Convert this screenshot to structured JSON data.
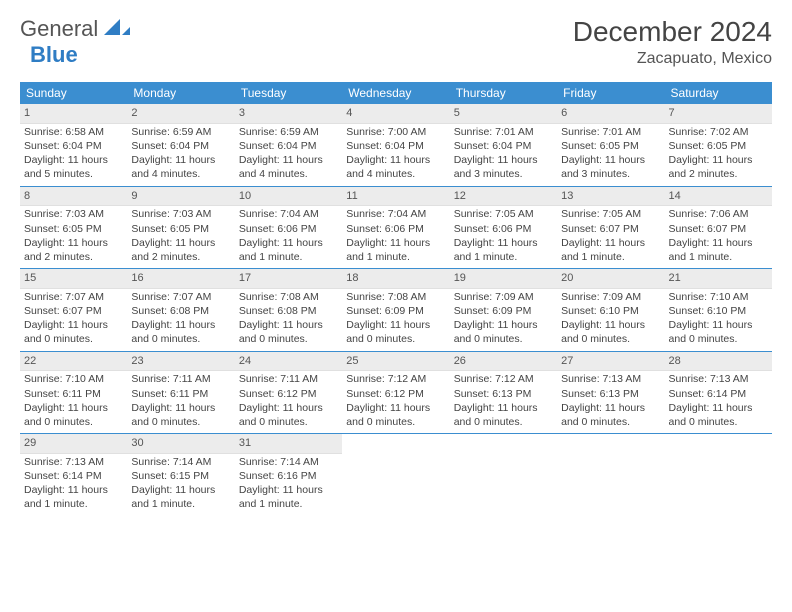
{
  "logo": {
    "word1": "General",
    "word2": "Blue"
  },
  "header": {
    "title": "December 2024",
    "location": "Zacapuato, Mexico"
  },
  "colors": {
    "header_bg": "#3b8ed0",
    "header_text": "#ffffff",
    "daynum_bg": "#ececec",
    "rule": "#3b8ed0",
    "text": "#444444"
  },
  "day_names": [
    "Sunday",
    "Monday",
    "Tuesday",
    "Wednesday",
    "Thursday",
    "Friday",
    "Saturday"
  ],
  "weeks": [
    [
      {
        "n": "1",
        "sr": "Sunrise: 6:58 AM",
        "ss": "Sunset: 6:04 PM",
        "d1": "Daylight: 11 hours",
        "d2": "and 5 minutes."
      },
      {
        "n": "2",
        "sr": "Sunrise: 6:59 AM",
        "ss": "Sunset: 6:04 PM",
        "d1": "Daylight: 11 hours",
        "d2": "and 4 minutes."
      },
      {
        "n": "3",
        "sr": "Sunrise: 6:59 AM",
        "ss": "Sunset: 6:04 PM",
        "d1": "Daylight: 11 hours",
        "d2": "and 4 minutes."
      },
      {
        "n": "4",
        "sr": "Sunrise: 7:00 AM",
        "ss": "Sunset: 6:04 PM",
        "d1": "Daylight: 11 hours",
        "d2": "and 4 minutes."
      },
      {
        "n": "5",
        "sr": "Sunrise: 7:01 AM",
        "ss": "Sunset: 6:04 PM",
        "d1": "Daylight: 11 hours",
        "d2": "and 3 minutes."
      },
      {
        "n": "6",
        "sr": "Sunrise: 7:01 AM",
        "ss": "Sunset: 6:05 PM",
        "d1": "Daylight: 11 hours",
        "d2": "and 3 minutes."
      },
      {
        "n": "7",
        "sr": "Sunrise: 7:02 AM",
        "ss": "Sunset: 6:05 PM",
        "d1": "Daylight: 11 hours",
        "d2": "and 2 minutes."
      }
    ],
    [
      {
        "n": "8",
        "sr": "Sunrise: 7:03 AM",
        "ss": "Sunset: 6:05 PM",
        "d1": "Daylight: 11 hours",
        "d2": "and 2 minutes."
      },
      {
        "n": "9",
        "sr": "Sunrise: 7:03 AM",
        "ss": "Sunset: 6:05 PM",
        "d1": "Daylight: 11 hours",
        "d2": "and 2 minutes."
      },
      {
        "n": "10",
        "sr": "Sunrise: 7:04 AM",
        "ss": "Sunset: 6:06 PM",
        "d1": "Daylight: 11 hours",
        "d2": "and 1 minute."
      },
      {
        "n": "11",
        "sr": "Sunrise: 7:04 AM",
        "ss": "Sunset: 6:06 PM",
        "d1": "Daylight: 11 hours",
        "d2": "and 1 minute."
      },
      {
        "n": "12",
        "sr": "Sunrise: 7:05 AM",
        "ss": "Sunset: 6:06 PM",
        "d1": "Daylight: 11 hours",
        "d2": "and 1 minute."
      },
      {
        "n": "13",
        "sr": "Sunrise: 7:05 AM",
        "ss": "Sunset: 6:07 PM",
        "d1": "Daylight: 11 hours",
        "d2": "and 1 minute."
      },
      {
        "n": "14",
        "sr": "Sunrise: 7:06 AM",
        "ss": "Sunset: 6:07 PM",
        "d1": "Daylight: 11 hours",
        "d2": "and 1 minute."
      }
    ],
    [
      {
        "n": "15",
        "sr": "Sunrise: 7:07 AM",
        "ss": "Sunset: 6:07 PM",
        "d1": "Daylight: 11 hours",
        "d2": "and 0 minutes."
      },
      {
        "n": "16",
        "sr": "Sunrise: 7:07 AM",
        "ss": "Sunset: 6:08 PM",
        "d1": "Daylight: 11 hours",
        "d2": "and 0 minutes."
      },
      {
        "n": "17",
        "sr": "Sunrise: 7:08 AM",
        "ss": "Sunset: 6:08 PM",
        "d1": "Daylight: 11 hours",
        "d2": "and 0 minutes."
      },
      {
        "n": "18",
        "sr": "Sunrise: 7:08 AM",
        "ss": "Sunset: 6:09 PM",
        "d1": "Daylight: 11 hours",
        "d2": "and 0 minutes."
      },
      {
        "n": "19",
        "sr": "Sunrise: 7:09 AM",
        "ss": "Sunset: 6:09 PM",
        "d1": "Daylight: 11 hours",
        "d2": "and 0 minutes."
      },
      {
        "n": "20",
        "sr": "Sunrise: 7:09 AM",
        "ss": "Sunset: 6:10 PM",
        "d1": "Daylight: 11 hours",
        "d2": "and 0 minutes."
      },
      {
        "n": "21",
        "sr": "Sunrise: 7:10 AM",
        "ss": "Sunset: 6:10 PM",
        "d1": "Daylight: 11 hours",
        "d2": "and 0 minutes."
      }
    ],
    [
      {
        "n": "22",
        "sr": "Sunrise: 7:10 AM",
        "ss": "Sunset: 6:11 PM",
        "d1": "Daylight: 11 hours",
        "d2": "and 0 minutes."
      },
      {
        "n": "23",
        "sr": "Sunrise: 7:11 AM",
        "ss": "Sunset: 6:11 PM",
        "d1": "Daylight: 11 hours",
        "d2": "and 0 minutes."
      },
      {
        "n": "24",
        "sr": "Sunrise: 7:11 AM",
        "ss": "Sunset: 6:12 PM",
        "d1": "Daylight: 11 hours",
        "d2": "and 0 minutes."
      },
      {
        "n": "25",
        "sr": "Sunrise: 7:12 AM",
        "ss": "Sunset: 6:12 PM",
        "d1": "Daylight: 11 hours",
        "d2": "and 0 minutes."
      },
      {
        "n": "26",
        "sr": "Sunrise: 7:12 AM",
        "ss": "Sunset: 6:13 PM",
        "d1": "Daylight: 11 hours",
        "d2": "and 0 minutes."
      },
      {
        "n": "27",
        "sr": "Sunrise: 7:13 AM",
        "ss": "Sunset: 6:13 PM",
        "d1": "Daylight: 11 hours",
        "d2": "and 0 minutes."
      },
      {
        "n": "28",
        "sr": "Sunrise: 7:13 AM",
        "ss": "Sunset: 6:14 PM",
        "d1": "Daylight: 11 hours",
        "d2": "and 0 minutes."
      }
    ],
    [
      {
        "n": "29",
        "sr": "Sunrise: 7:13 AM",
        "ss": "Sunset: 6:14 PM",
        "d1": "Daylight: 11 hours",
        "d2": "and 1 minute."
      },
      {
        "n": "30",
        "sr": "Sunrise: 7:14 AM",
        "ss": "Sunset: 6:15 PM",
        "d1": "Daylight: 11 hours",
        "d2": "and 1 minute."
      },
      {
        "n": "31",
        "sr": "Sunrise: 7:14 AM",
        "ss": "Sunset: 6:16 PM",
        "d1": "Daylight: 11 hours",
        "d2": "and 1 minute."
      },
      null,
      null,
      null,
      null
    ]
  ]
}
